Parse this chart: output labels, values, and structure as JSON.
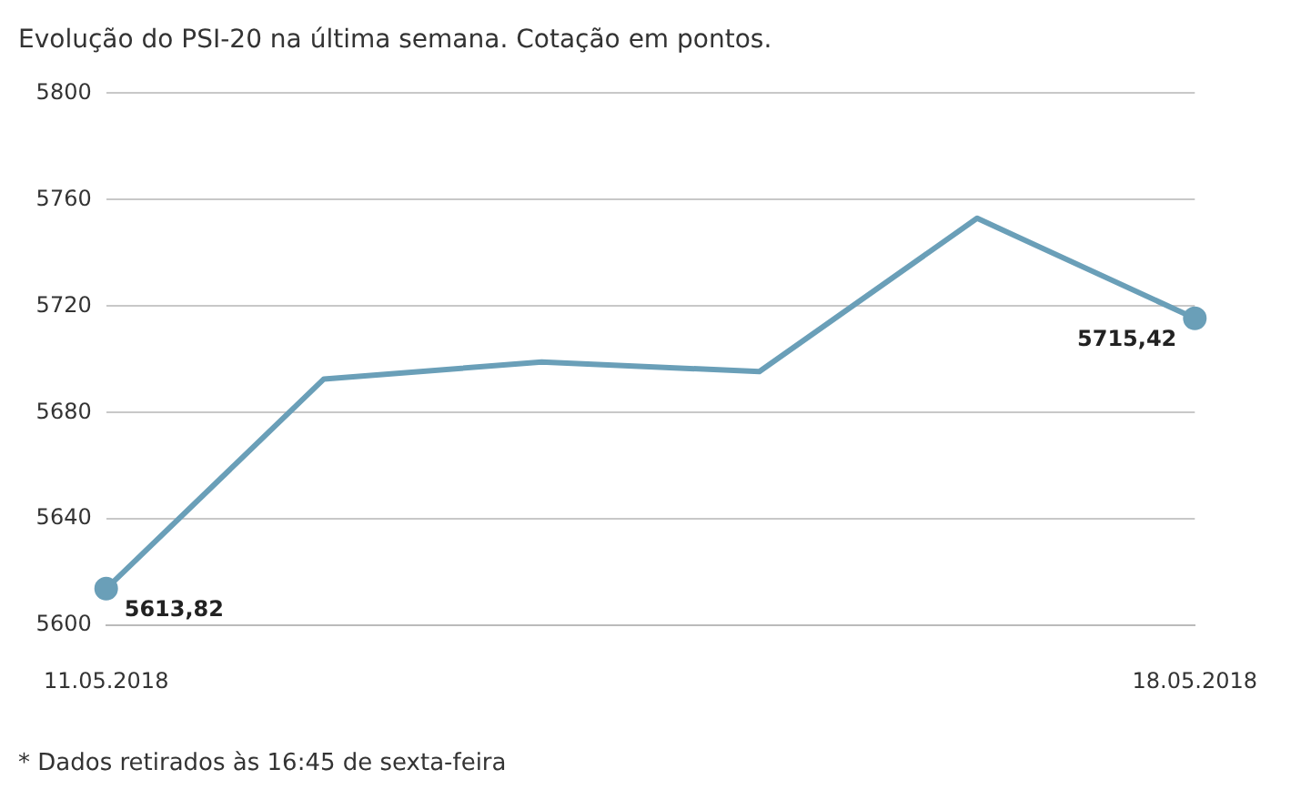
{
  "chart_data": {
    "type": "line",
    "title": "Evolução do PSI-20 na última semana. Cotação em pontos.",
    "categories": [
      "11.05.2018",
      null,
      null,
      null,
      null,
      "18.05.2018"
    ],
    "series": [
      {
        "color": "#6a9fb8",
        "values": [
          5613.82,
          5692.6,
          5699,
          5695.4,
          5753,
          5715.42
        ]
      },
      {
        "type": "scatter",
        "color": "#6a9fb8",
        "x": [
          "11.05.2018",
          "18.05.2018"
        ],
        "values": [
          5613.82,
          5715.42
        ],
        "value_labels": [
          "5613,82",
          "5715,42"
        ]
      }
    ],
    "ylim": [
      5600,
      5800
    ],
    "yticks": [
      5600,
      5640,
      5680,
      5720,
      5760,
      5800
    ],
    "grid": "y",
    "legend": false,
    "line_style": "solid",
    "annotations": [
      "* Dados retirados às 16:45 de sexta-feira"
    ]
  }
}
